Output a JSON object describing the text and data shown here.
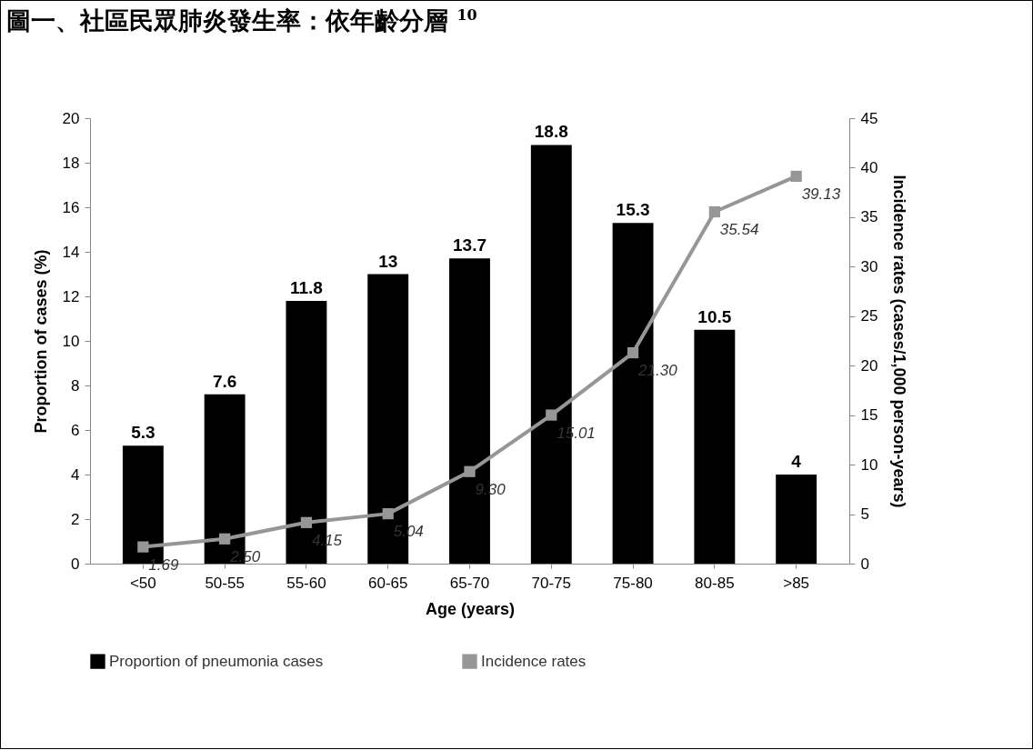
{
  "chart_data": {
    "type": "bar",
    "title": "圖一、社區民眾肺炎發生率：依年齡分層 $^{10}$",
    "xlabel": "Age (years)",
    "ylabel": "Proportion of cases (%)",
    "y2label": "Incidence rates (cases/1,000 person-years)",
    "categories": [
      "<50",
      "50-55",
      "55-60",
      "60-65",
      "65-70",
      "70-75",
      "75-80",
      "80-85",
      ">85"
    ],
    "series": [
      {
        "name": "Proportion of pneumonia cases",
        "color": "#000000",
        "values": [
          5.3,
          7.6,
          11.8,
          13,
          13.7,
          18.8,
          15.3,
          10.5,
          4
        ],
        "value_labels": [
          "5.3",
          "7.6",
          "11.8",
          "13",
          "13.7",
          "18.8",
          "15.3",
          "10.5",
          "4"
        ]
      },
      {
        "name": "Incidence rates",
        "type": "line",
        "axis": "y2",
        "color": "#969696",
        "marker": "square",
        "values": [
          1.69,
          2.5,
          4.15,
          5.04,
          9.3,
          15.01,
          21.3,
          35.54,
          39.13
        ],
        "value_labels": [
          "1.69",
          "2.50",
          "4.15",
          "5.04",
          "9.30",
          "15.01",
          "21.30",
          "35.54",
          "39.13"
        ]
      }
    ],
    "ylim": [
      0,
      20
    ],
    "yticks": [
      0,
      2,
      4,
      6,
      8,
      10,
      12,
      14,
      16,
      18,
      20
    ],
    "y2lim": [
      0,
      45
    ],
    "y2ticks": [
      0,
      5,
      10,
      15,
      20,
      25,
      30,
      35,
      40,
      45
    ],
    "legend": "bottom"
  }
}
